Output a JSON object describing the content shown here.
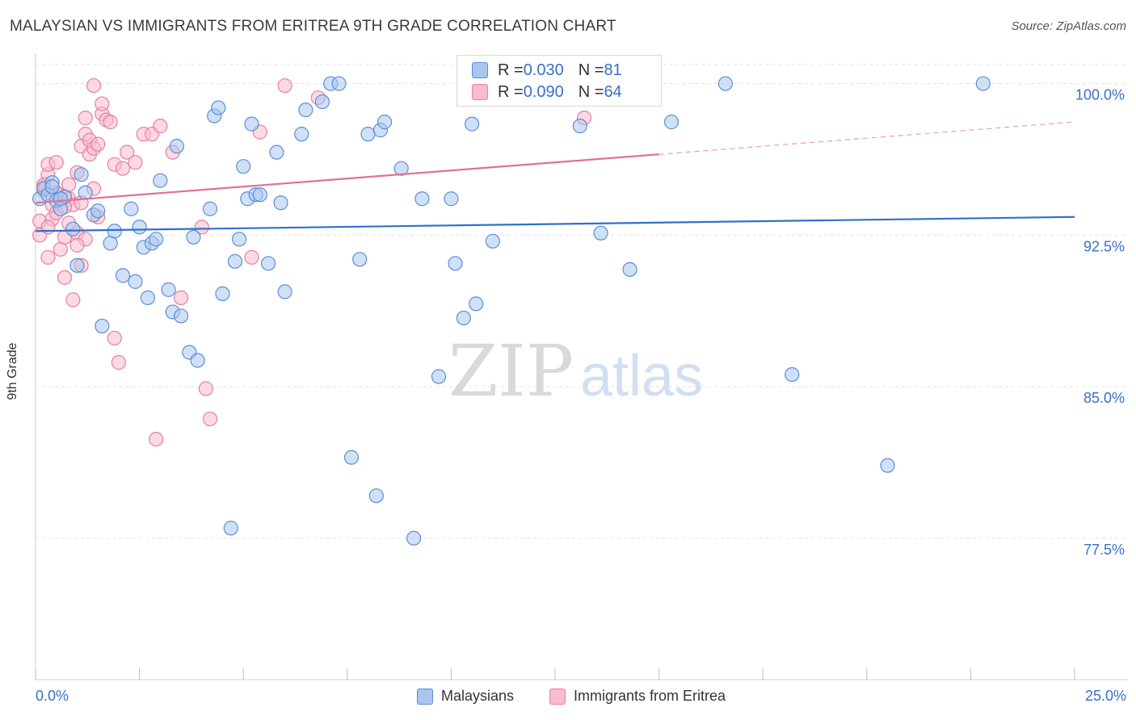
{
  "title": "MALAYSIAN VS IMMIGRANTS FROM ERITREA 9TH GRADE CORRELATION CHART",
  "source": "Source: ZipAtlas.com",
  "watermark": {
    "zip": "ZIP",
    "atlas": "atlas"
  },
  "colors": {
    "blue_fill": "#a9c6ef",
    "blue_stroke": "#5b8fd6",
    "blue_line": "#2f6fce",
    "pink_fill": "#f7bccd",
    "pink_stroke": "#e87fa0",
    "pink_line": "#e0709a",
    "tick_label": "#3a6fc4",
    "grid": "#e3e3e3"
  },
  "legend_top": {
    "rows": [
      {
        "r_label": "R = ",
        "r_value": "0.030",
        "n_label": "N = ",
        "n_value": "81"
      },
      {
        "r_label": "R = ",
        "r_value": "0.090",
        "n_label": "N = ",
        "n_value": "64"
      }
    ]
  },
  "legend_bottom": {
    "series1": "Malaysians",
    "series2": "Immigrants from Eritrea"
  },
  "chart_data": {
    "type": "scatter",
    "title": "MALAYSIAN VS IMMIGRANTS FROM ERITREA 9TH GRADE CORRELATION CHART",
    "xlabel": "",
    "ylabel": "9th Grade",
    "xlim": [
      0,
      25
    ],
    "ylim": [
      70.5,
      101.5
    ],
    "x_tick_labels": [
      "0.0%",
      "25.0%"
    ],
    "y_ticks": [
      77.5,
      85.0,
      92.5,
      100.0
    ],
    "y_tick_labels": [
      "77.5%",
      "85.0%",
      "92.5%",
      "100.0%"
    ],
    "grid": true,
    "series": [
      {
        "name": "Malaysians",
        "r": 0.03,
        "n": 81,
        "trend": {
          "x0": 0,
          "y0": 92.7,
          "x1": 25,
          "y1": 93.4
        },
        "points": [
          [
            0.1,
            94.3
          ],
          [
            0.2,
            94.8
          ],
          [
            0.3,
            94.5
          ],
          [
            0.4,
            95.1
          ],
          [
            0.5,
            94.2
          ],
          [
            0.6,
            93.8
          ],
          [
            0.7,
            94.4
          ],
          [
            0.9,
            92.8
          ],
          [
            1.0,
            91.0
          ],
          [
            1.1,
            95.5
          ],
          [
            1.2,
            94.6
          ],
          [
            1.4,
            93.5
          ],
          [
            1.6,
            88.0
          ],
          [
            1.8,
            92.1
          ],
          [
            1.9,
            92.7
          ],
          [
            2.1,
            90.5
          ],
          [
            2.3,
            93.8
          ],
          [
            2.4,
            90.2
          ],
          [
            2.5,
            92.9
          ],
          [
            2.6,
            91.9
          ],
          [
            2.7,
            89.4
          ],
          [
            2.8,
            92.1
          ],
          [
            2.9,
            92.3
          ],
          [
            3.0,
            95.2
          ],
          [
            3.2,
            89.8
          ],
          [
            3.3,
            88.7
          ],
          [
            3.4,
            96.9
          ],
          [
            3.5,
            88.5
          ],
          [
            3.7,
            86.7
          ],
          [
            3.8,
            92.4
          ],
          [
            3.9,
            86.3
          ],
          [
            4.2,
            93.8
          ],
          [
            4.3,
            98.4
          ],
          [
            4.4,
            98.8
          ],
          [
            4.5,
            89.6
          ],
          [
            4.7,
            78.0
          ],
          [
            4.8,
            91.2
          ],
          [
            4.9,
            92.3
          ],
          [
            5.0,
            95.9
          ],
          [
            5.1,
            94.3
          ],
          [
            5.2,
            98.0
          ],
          [
            5.3,
            94.5
          ],
          [
            5.4,
            94.5
          ],
          [
            5.6,
            91.1
          ],
          [
            5.8,
            96.6
          ],
          [
            5.9,
            94.1
          ],
          [
            6.0,
            89.7
          ],
          [
            6.4,
            97.5
          ],
          [
            6.5,
            98.7
          ],
          [
            6.9,
            99.1
          ],
          [
            7.1,
            100.0
          ],
          [
            7.3,
            100.0
          ],
          [
            7.6,
            81.5
          ],
          [
            7.8,
            91.3
          ],
          [
            8.0,
            97.5
          ],
          [
            8.2,
            79.6
          ],
          [
            8.3,
            97.7
          ],
          [
            8.4,
            98.1
          ],
          [
            8.8,
            95.8
          ],
          [
            9.1,
            77.5
          ],
          [
            9.3,
            94.3
          ],
          [
            9.7,
            85.5
          ],
          [
            10.0,
            94.3
          ],
          [
            10.1,
            91.1
          ],
          [
            10.3,
            88.4
          ],
          [
            10.5,
            98.0
          ],
          [
            10.6,
            89.1
          ],
          [
            11.0,
            92.2
          ],
          [
            11.5,
            100.0
          ],
          [
            13.1,
            97.9
          ],
          [
            13.6,
            92.6
          ],
          [
            13.9,
            100.0
          ],
          [
            14.3,
            90.8
          ],
          [
            15.3,
            98.1
          ],
          [
            16.6,
            100.0
          ],
          [
            18.2,
            85.6
          ],
          [
            20.5,
            81.1
          ],
          [
            22.8,
            100.0
          ],
          [
            0.4,
            94.9
          ],
          [
            0.6,
            94.3
          ],
          [
            1.5,
            93.7
          ]
        ]
      },
      {
        "name": "Immigrants from Eritrea",
        "r": 0.09,
        "n": 64,
        "trend": {
          "x0": 0,
          "y0": 94.1,
          "x1": 15.0,
          "y1": 96.5,
          "dash_x1": 25,
          "dash_y1": 98.1
        },
        "points": [
          [
            0.1,
            93.2
          ],
          [
            0.1,
            92.5
          ],
          [
            0.2,
            94.7
          ],
          [
            0.2,
            94.9
          ],
          [
            0.3,
            95.5
          ],
          [
            0.3,
            96.0
          ],
          [
            0.3,
            91.4
          ],
          [
            0.4,
            94.0
          ],
          [
            0.4,
            93.3
          ],
          [
            0.5,
            96.1
          ],
          [
            0.5,
            93.6
          ],
          [
            0.6,
            94.5
          ],
          [
            0.6,
            91.8
          ],
          [
            0.7,
            92.4
          ],
          [
            0.7,
            90.4
          ],
          [
            0.8,
            95.0
          ],
          [
            0.8,
            94.3
          ],
          [
            0.8,
            93.1
          ],
          [
            0.9,
            94.0
          ],
          [
            0.9,
            89.3
          ],
          [
            1.0,
            95.6
          ],
          [
            1.0,
            92.6
          ],
          [
            1.1,
            96.9
          ],
          [
            1.1,
            94.1
          ],
          [
            1.1,
            91.0
          ],
          [
            1.2,
            98.3
          ],
          [
            1.2,
            97.5
          ],
          [
            1.2,
            92.3
          ],
          [
            1.3,
            97.2
          ],
          [
            1.3,
            96.5
          ],
          [
            1.4,
            99.9
          ],
          [
            1.4,
            96.8
          ],
          [
            1.4,
            94.8
          ],
          [
            1.5,
            97.0
          ],
          [
            1.5,
            93.4
          ],
          [
            1.6,
            98.5
          ],
          [
            1.6,
            99.0
          ],
          [
            1.7,
            98.2
          ],
          [
            1.8,
            98.1
          ],
          [
            1.9,
            96.0
          ],
          [
            1.9,
            87.4
          ],
          [
            2.0,
            86.2
          ],
          [
            2.1,
            95.8
          ],
          [
            2.2,
            96.6
          ],
          [
            2.4,
            96.1
          ],
          [
            2.6,
            97.5
          ],
          [
            2.8,
            97.5
          ],
          [
            2.9,
            82.4
          ],
          [
            3.0,
            97.9
          ],
          [
            3.3,
            96.6
          ],
          [
            3.5,
            89.4
          ],
          [
            4.0,
            92.9
          ],
          [
            4.1,
            84.9
          ],
          [
            4.2,
            83.4
          ],
          [
            5.2,
            91.4
          ],
          [
            5.4,
            97.6
          ],
          [
            6.0,
            99.9
          ],
          [
            6.8,
            99.3
          ],
          [
            13.2,
            98.3
          ],
          [
            0.2,
            95.0
          ],
          [
            0.5,
            94.6
          ],
          [
            0.7,
            93.9
          ],
          [
            1.0,
            92.0
          ],
          [
            0.3,
            92.9
          ]
        ]
      }
    ]
  }
}
